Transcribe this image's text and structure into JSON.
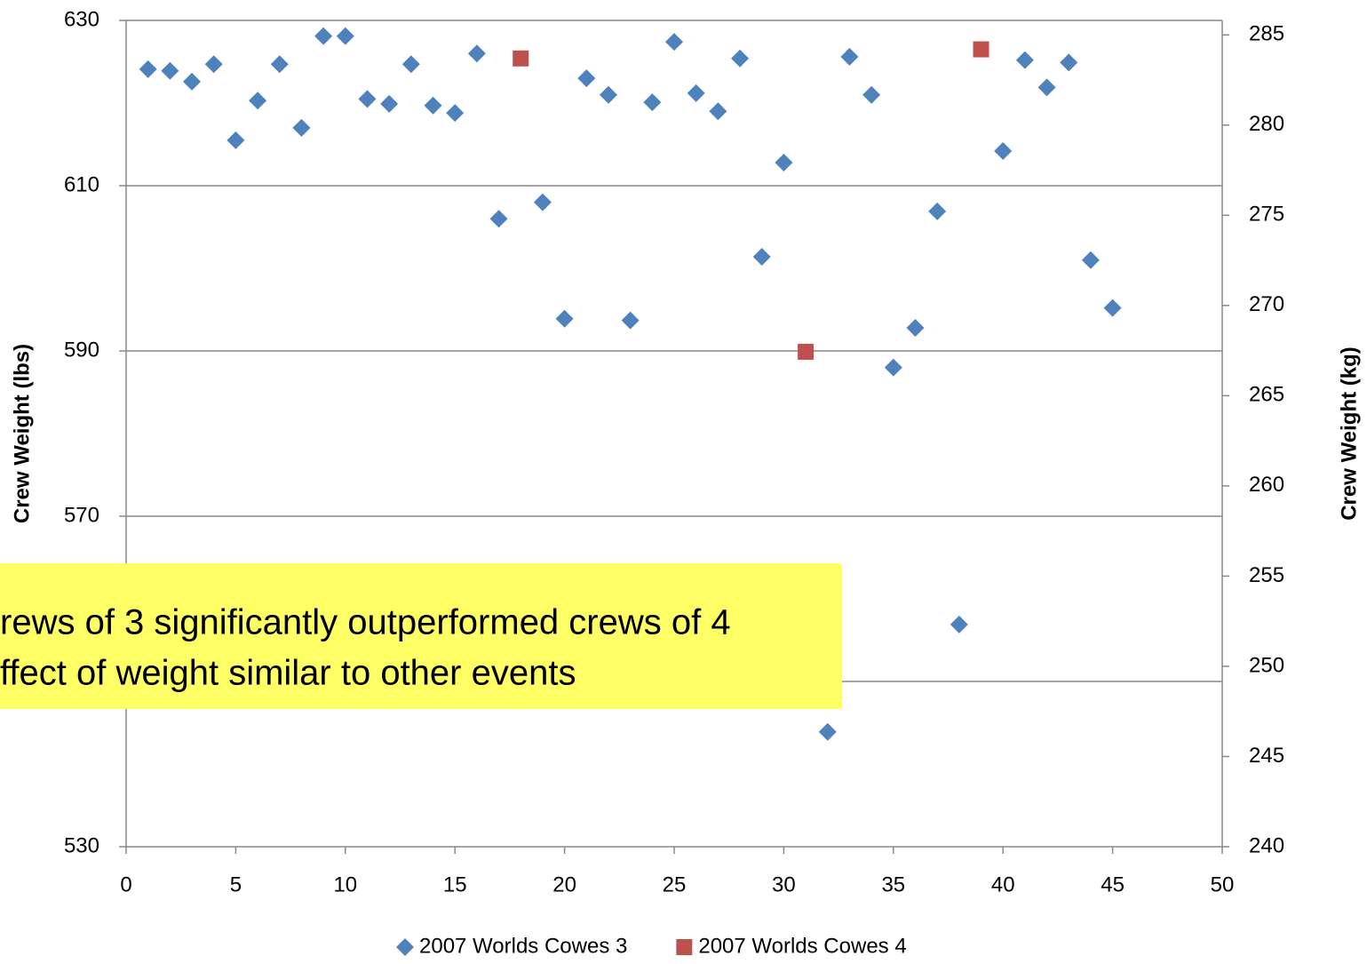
{
  "chart_data": {
    "type": "scatter",
    "ylabel": "Crew Weight (lbs)",
    "y2label": "Crew Weight (kg)",
    "xlim": [
      0,
      50
    ],
    "xticks": [
      0,
      5,
      10,
      15,
      20,
      25,
      30,
      35,
      40,
      45,
      50
    ],
    "ylim": [
      530,
      630
    ],
    "yticks": [
      530,
      550,
      570,
      590,
      610,
      630
    ],
    "y2lim": [
      240,
      285.8
    ],
    "y2ticks": [
      240,
      245,
      250,
      255,
      260,
      265,
      270,
      275,
      280,
      285
    ],
    "grid": true,
    "legend": "bottom",
    "annotation": [
      "rews of 3 significantly outperformed crews of 4",
      "ffect of weight similar to other events"
    ],
    "series": [
      {
        "name": "2007 Worlds Cowes 3",
        "color": "#4f81bd",
        "marker": "diamond",
        "x": [
          1,
          2,
          3,
          4,
          5,
          6,
          7,
          8,
          9,
          10,
          11,
          12,
          13,
          14,
          15,
          16,
          17,
          19,
          20,
          21,
          22,
          23,
          24,
          25,
          26,
          27,
          28,
          29,
          30,
          32,
          33,
          34,
          35,
          36,
          37,
          38,
          40,
          41,
          42,
          43,
          44,
          45
        ],
        "values": [
          624.1,
          623.9,
          622.6,
          624.7,
          615.5,
          620.3,
          624.7,
          617.0,
          628.1,
          628.1,
          620.5,
          619.9,
          624.7,
          619.7,
          618.8,
          626.0,
          606.0,
          608.0,
          593.9,
          623.0,
          621.0,
          593.7,
          620.1,
          627.4,
          621.2,
          619.0,
          625.4,
          601.4,
          612.8,
          543.9,
          625.6,
          621.0,
          588.0,
          592.8,
          606.9,
          556.9,
          614.2,
          625.2,
          621.9,
          624.9,
          601.0,
          595.2
        ]
      },
      {
        "name": "2007 Worlds Cowes 4",
        "color": "#c0504d",
        "marker": "square",
        "x": [
          18,
          31,
          39
        ],
        "values": [
          625.4,
          589.9,
          626.5
        ]
      }
    ]
  }
}
